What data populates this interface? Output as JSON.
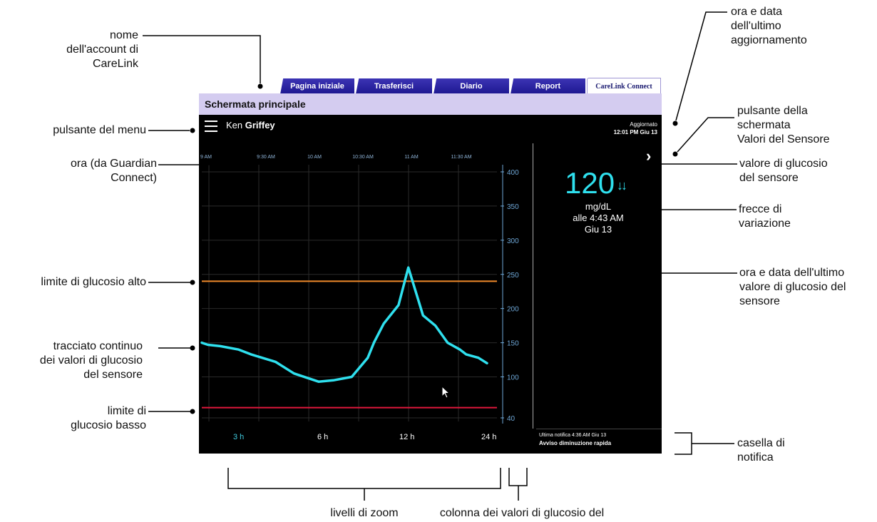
{
  "tabs": [
    {
      "label": "Pagina iniziale"
    },
    {
      "label": "Trasferisci"
    },
    {
      "label": "Diario"
    },
    {
      "label": "Report"
    },
    {
      "label": "CareLink Connect"
    }
  ],
  "title": "Schermata principale",
  "user": {
    "first": "Ken",
    "last": "Griffey"
  },
  "updated": {
    "label": "Aggiornato",
    "value": "12:01 PM Giu 13"
  },
  "sensor": {
    "value": "120",
    "arrows": "↓↓",
    "unit": "mg/dL",
    "time": "alle 4:43 AM",
    "date": "Giu 13"
  },
  "zoom_levels": [
    {
      "label": "3 h",
      "active": true
    },
    {
      "label": "6 h",
      "active": false
    },
    {
      "label": "12 h",
      "active": false
    },
    {
      "label": "24 h",
      "active": false
    }
  ],
  "notification": {
    "time": "Ultima notifica 4:36 AM Giu 13",
    "text": "Avviso diminuzione rapida"
  },
  "colors": {
    "trace": "#2fe0ee",
    "high_limit": "#f08a2a",
    "low_limit": "#e0183c",
    "axis_label": "#6fa8d8"
  },
  "chart_data": {
    "type": "line",
    "x_ticks": [
      "9 AM",
      "9:30 AM",
      "10 AM",
      "10:30 AM",
      "11 AM",
      "11:30 AM"
    ],
    "y_ticks": [
      40,
      100,
      150,
      200,
      250,
      300,
      350,
      400
    ],
    "ylim": [
      40,
      400
    ],
    "grid": true,
    "high_limit": 240,
    "low_limit": 55,
    "series": [
      {
        "x": [
          0,
          5,
          15,
          30,
          40,
          60,
          75,
          95,
          107,
          122,
          135,
          140,
          148,
          160,
          168,
          180,
          190,
          200,
          210,
          215,
          225,
          232
        ],
        "y": [
          150,
          147,
          145,
          140,
          133,
          122,
          105,
          93,
          95,
          100,
          128,
          150,
          178,
          205,
          260,
          190,
          175,
          150,
          140,
          133,
          128,
          120
        ]
      }
    ]
  },
  "annotations": {
    "account_name": "nome\ndell'account di\nCareLink",
    "menu_button": "pulsante del menu",
    "time_label": "ora (da Guardian\nConnect)",
    "high_limit": "limite di glucosio alto",
    "trace": "tracciato continuo\ndei valori di glucosio\ndel sensore",
    "low_limit": "limite di\nglucosio basso",
    "last_update": "ora e data\ndell'ultimo\naggiornamento",
    "sensor_button": "pulsante della\nschermata\nValori del Sensore",
    "sg_value": "valore di glucosio\ndel sensore",
    "trend_arrows": "frecce di\nvariazione",
    "last_sg_time": "ora e data dell'ultimo\nvalore di glucosio del\nsensore",
    "notification_box": "casella di\nnotifica",
    "zoom_levels": "livelli di zoom",
    "sg_column": "colonna dei valori di glucosio del sensore"
  }
}
